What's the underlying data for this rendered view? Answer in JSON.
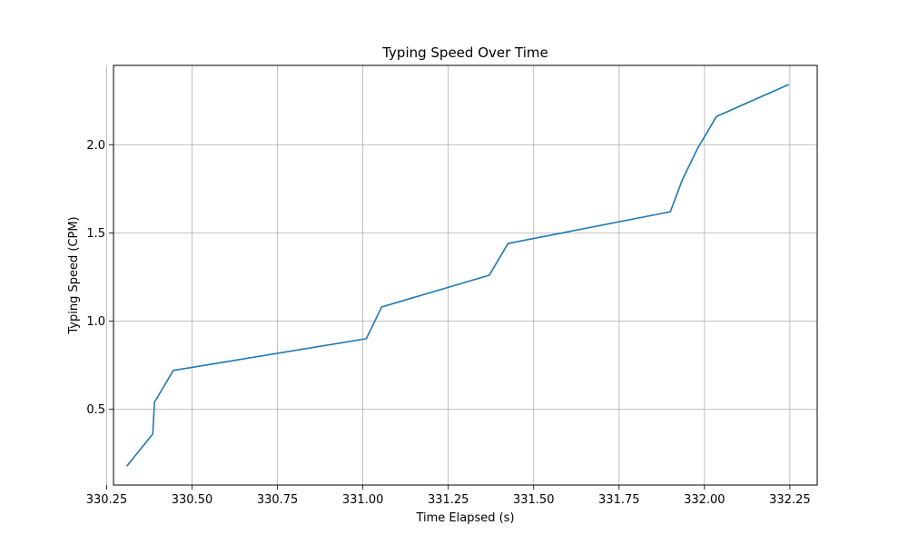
{
  "chart_data": {
    "type": "line",
    "title": "Typing Speed Over Time",
    "xlabel": "Time Elapsed (s)",
    "ylabel": "Typing Speed (CPM)",
    "xlim": [
      330.27,
      332.33
    ],
    "ylim": [
      0.07,
      2.45
    ],
    "xticks": [
      330.25,
      330.5,
      330.75,
      331.0,
      331.25,
      331.5,
      331.75,
      332.0,
      332.25
    ],
    "xtick_labels": [
      "330.25",
      "330.50",
      "330.75",
      "331.00",
      "331.25",
      "331.50",
      "331.75",
      "332.00",
      "332.25"
    ],
    "yticks": [
      0.5,
      1.0,
      1.5,
      2.0
    ],
    "ytick_labels": [
      "0.5",
      "1.0",
      "1.5",
      "2.0"
    ],
    "grid": true,
    "series": [
      {
        "color": "#1f77b4",
        "x": [
          330.31,
          330.385,
          330.39,
          330.445,
          331.01,
          331.055,
          331.37,
          331.425,
          331.9,
          331.935,
          331.98,
          332.035,
          332.245
        ],
        "y": [
          0.18,
          0.36,
          0.54,
          0.72,
          0.9,
          1.08,
          1.26,
          1.44,
          1.62,
          1.8,
          1.98,
          2.16,
          2.34
        ]
      }
    ]
  }
}
